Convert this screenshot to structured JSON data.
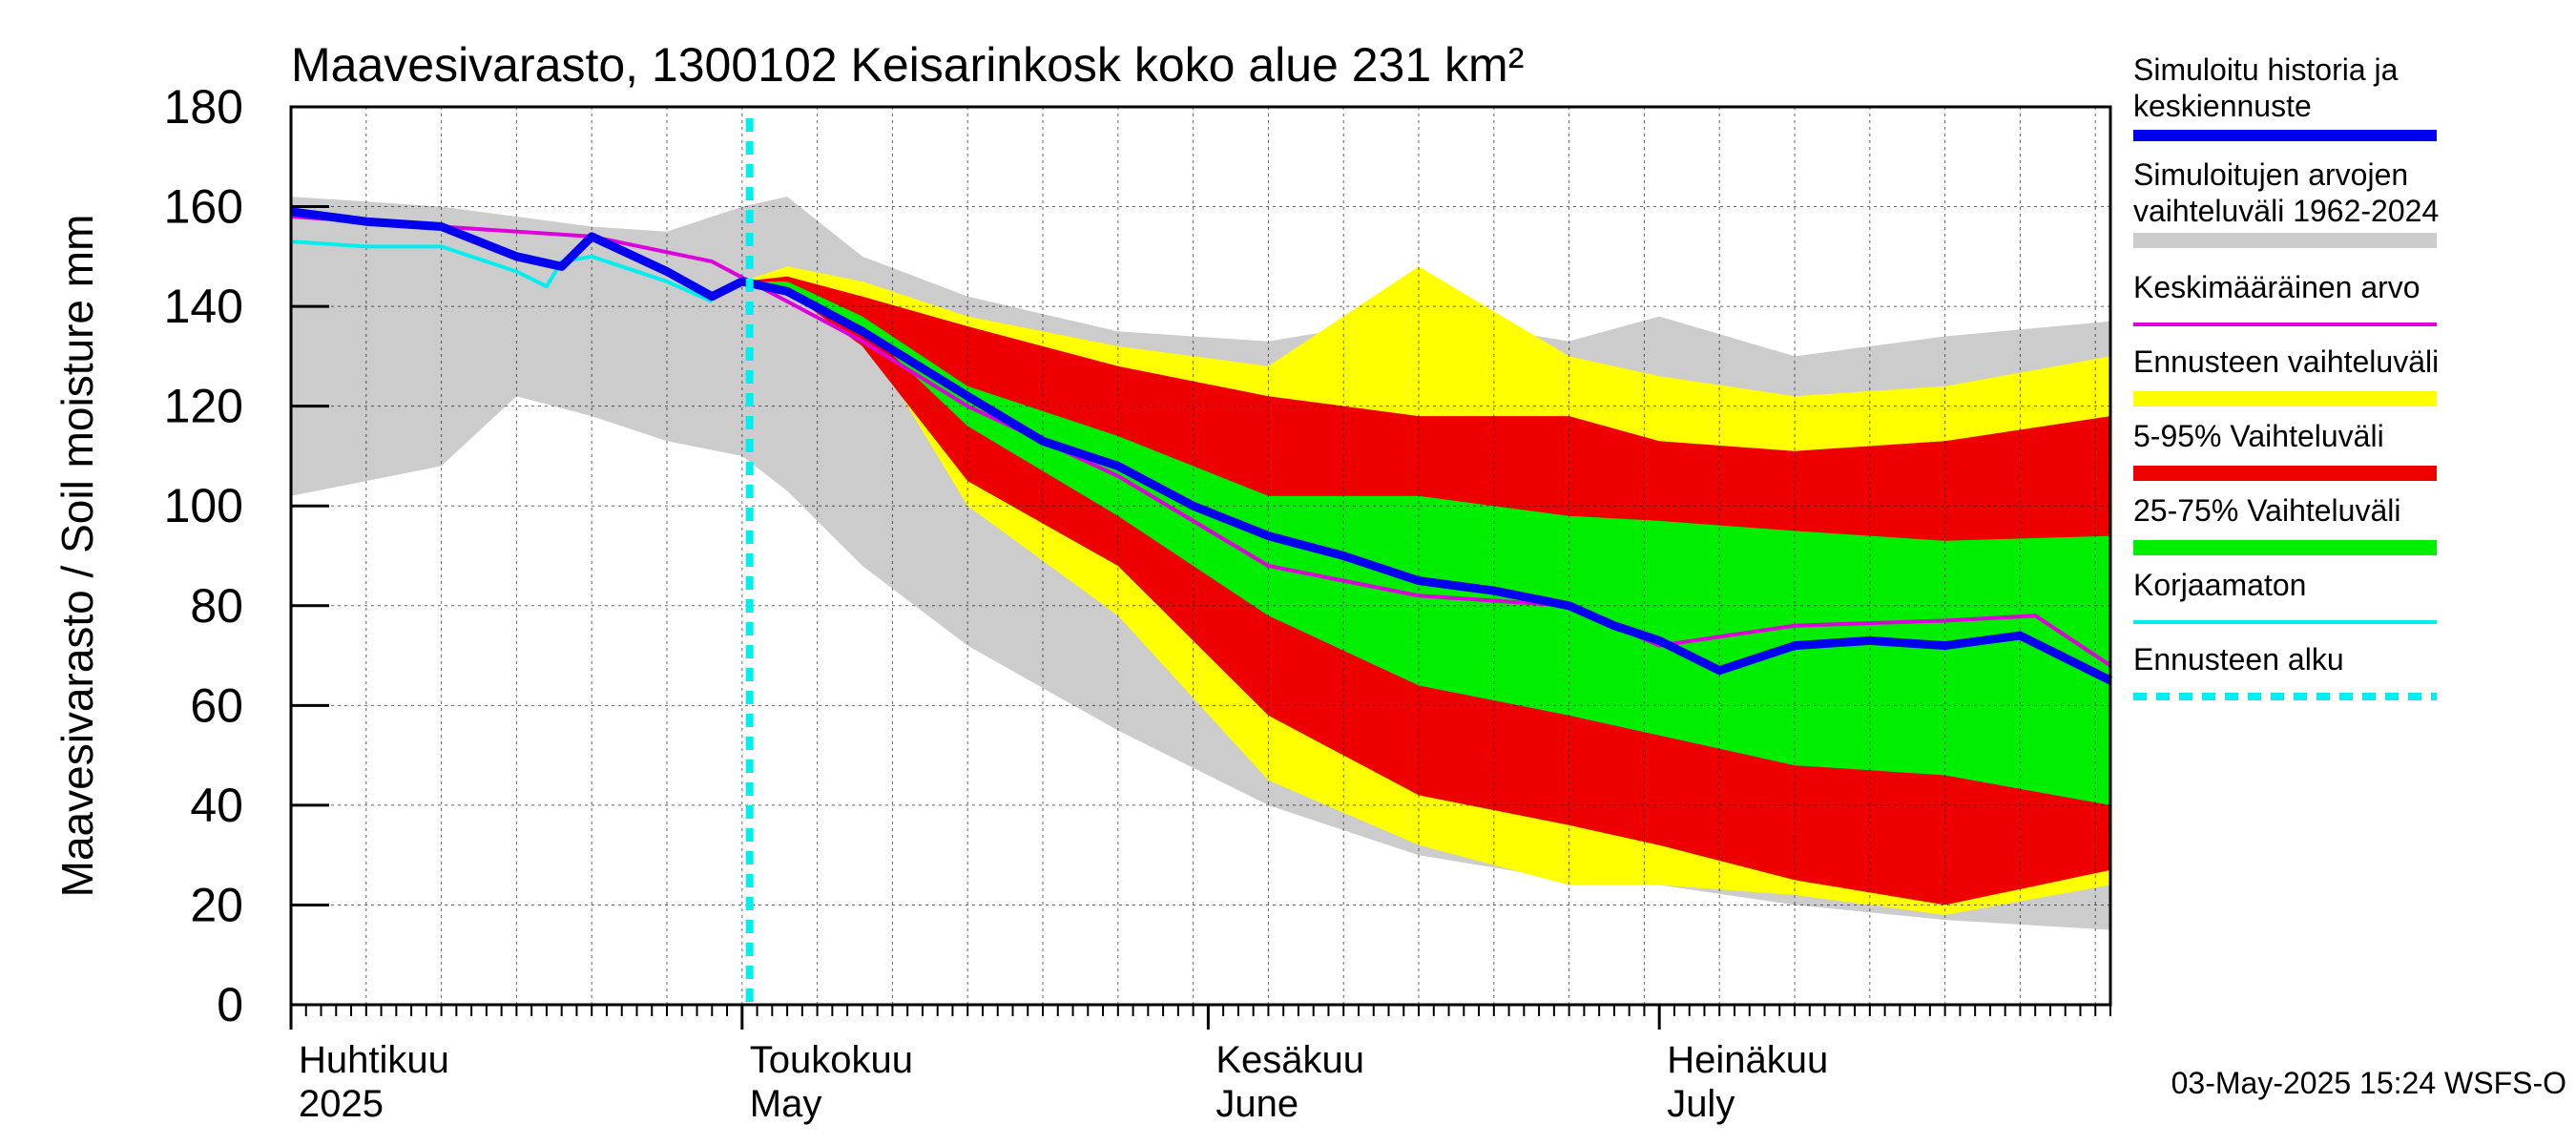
{
  "chart_data": {
    "type": "area",
    "title": "Maavesivarasto, 1300102 Keisarinkosk koko alue 231 km²",
    "ylabel": "Maavesivarasto / Soil moisture   mm",
    "ylim": [
      0,
      180
    ],
    "yticks": [
      0,
      20,
      40,
      60,
      80,
      100,
      120,
      140,
      160,
      180
    ],
    "x_range_days": [
      0,
      121
    ],
    "x_unit": "days since 2025-04-01",
    "grid": true,
    "month_labels": [
      {
        "day": 0,
        "line1": "Huhtikuu",
        "line2": "2025"
      },
      {
        "day": 30,
        "line1": "Toukokuu",
        "line2": "May"
      },
      {
        "day": 61,
        "line1": "Kesäkuu",
        "line2": "June"
      },
      {
        "day": 91,
        "line1": "Heinäkuu",
        "line2": "July"
      }
    ],
    "forecast_start_day": 30.5,
    "footer": "03-May-2025 15:24 WSFS-O",
    "legend": [
      {
        "key": "history",
        "label1": "Simuloitu historia ja",
        "label2": "keskiennuste",
        "color": "#0000ee"
      },
      {
        "key": "simrange",
        "label1": "Simuloitujen arvojen",
        "label2": "vaihteluväli 1962-2024",
        "color": "#cccccc"
      },
      {
        "key": "mean",
        "label1": "Keskimääräinen arvo",
        "label2": "",
        "color": "#dd00dd"
      },
      {
        "key": "fcrange",
        "label1": "Ennusteen vaihteluväli",
        "label2": "",
        "color": "#ffff00"
      },
      {
        "key": "p5_95",
        "label1": "5-95% Vaihteluväli",
        "label2": "",
        "color": "#ee0000"
      },
      {
        "key": "p25_75",
        "label1": "25-75% Vaihteluväli",
        "label2": "",
        "color": "#00ee00"
      },
      {
        "key": "uncorrected",
        "label1": "Korjaamaton",
        "label2": "",
        "color": "#00eeee"
      },
      {
        "key": "fcstart",
        "label1": "Ennusteen alku",
        "label2": "",
        "color": "#00eeee"
      }
    ],
    "series": [
      {
        "name": "Simuloitujen arvojen vaihteluväli 1962-2024",
        "key": "simrange",
        "x": [
          0,
          5,
          10,
          15,
          20,
          25,
          30,
          33,
          38,
          45,
          55,
          65,
          75,
          85,
          91,
          100,
          110,
          121
        ],
        "upper": [
          162,
          161,
          160,
          158,
          156,
          155,
          160,
          162,
          150,
          142,
          135,
          133,
          138,
          133,
          138,
          130,
          134,
          137
        ],
        "lower": [
          102,
          105,
          108,
          122,
          118,
          113,
          110,
          103,
          88,
          72,
          55,
          40,
          30,
          25,
          24,
          20,
          17,
          15
        ]
      },
      {
        "name": "Ennusteen vaihteluväli",
        "key": "fcrange",
        "x": [
          30,
          33,
          38,
          45,
          55,
          65,
          75,
          85,
          91,
          100,
          110,
          121
        ],
        "upper": [
          145,
          148,
          145,
          138,
          132,
          128,
          148,
          130,
          126,
          122,
          124,
          130
        ],
        "lower": [
          145,
          144,
          135,
          100,
          78,
          45,
          32,
          24,
          24,
          22,
          18,
          24
        ]
      },
      {
        "name": "5-95% Vaihteluväli",
        "key": "p5_95",
        "x": [
          30,
          33,
          38,
          45,
          55,
          65,
          75,
          85,
          91,
          100,
          110,
          121
        ],
        "upper": [
          145,
          146,
          142,
          136,
          128,
          122,
          118,
          118,
          113,
          111,
          113,
          118
        ],
        "lower": [
          145,
          143,
          132,
          105,
          88,
          58,
          42,
          36,
          32,
          25,
          20,
          27
        ]
      },
      {
        "name": "25-75% Vaihteluväli",
        "key": "p25_75",
        "x": [
          30,
          33,
          38,
          45,
          55,
          65,
          75,
          85,
          91,
          100,
          110,
          121
        ],
        "upper": [
          145,
          145,
          138,
          124,
          114,
          102,
          102,
          98,
          97,
          95,
          93,
          94
        ],
        "lower": [
          145,
          143,
          136,
          116,
          98,
          78,
          64,
          58,
          54,
          48,
          46,
          40
        ]
      },
      {
        "name": "Keskimääräinen arvo",
        "key": "mean",
        "x": [
          0,
          10,
          20,
          28,
          33,
          38,
          45,
          55,
          65,
          75,
          85,
          91,
          100,
          110,
          116,
          121
        ],
        "y": [
          158,
          156,
          154,
          149,
          141,
          133,
          120,
          106,
          88,
          82,
          80,
          72,
          76,
          77,
          78,
          68
        ]
      },
      {
        "name": "Korjaamaton",
        "key": "uncorrected",
        "x": [
          0,
          5,
          10,
          15,
          17,
          18,
          20,
          25,
          28
        ],
        "y": [
          153,
          152,
          152,
          147,
          144,
          149,
          150,
          145,
          141
        ]
      },
      {
        "name": "Simuloitu historia ja keskiennuste",
        "key": "history",
        "x": [
          0,
          5,
          10,
          15,
          18,
          20,
          25,
          28,
          30,
          33,
          38,
          45,
          50,
          55,
          60,
          65,
          70,
          75,
          80,
          85,
          88,
          91,
          95,
          100,
          105,
          110,
          115,
          121
        ],
        "y": [
          159,
          157,
          156,
          150,
          148,
          154,
          147,
          142,
          145,
          143,
          135,
          122,
          113,
          108,
          100,
          94,
          90,
          85,
          83,
          80,
          76,
          73,
          67,
          72,
          73,
          72,
          74,
          65
        ]
      }
    ]
  }
}
